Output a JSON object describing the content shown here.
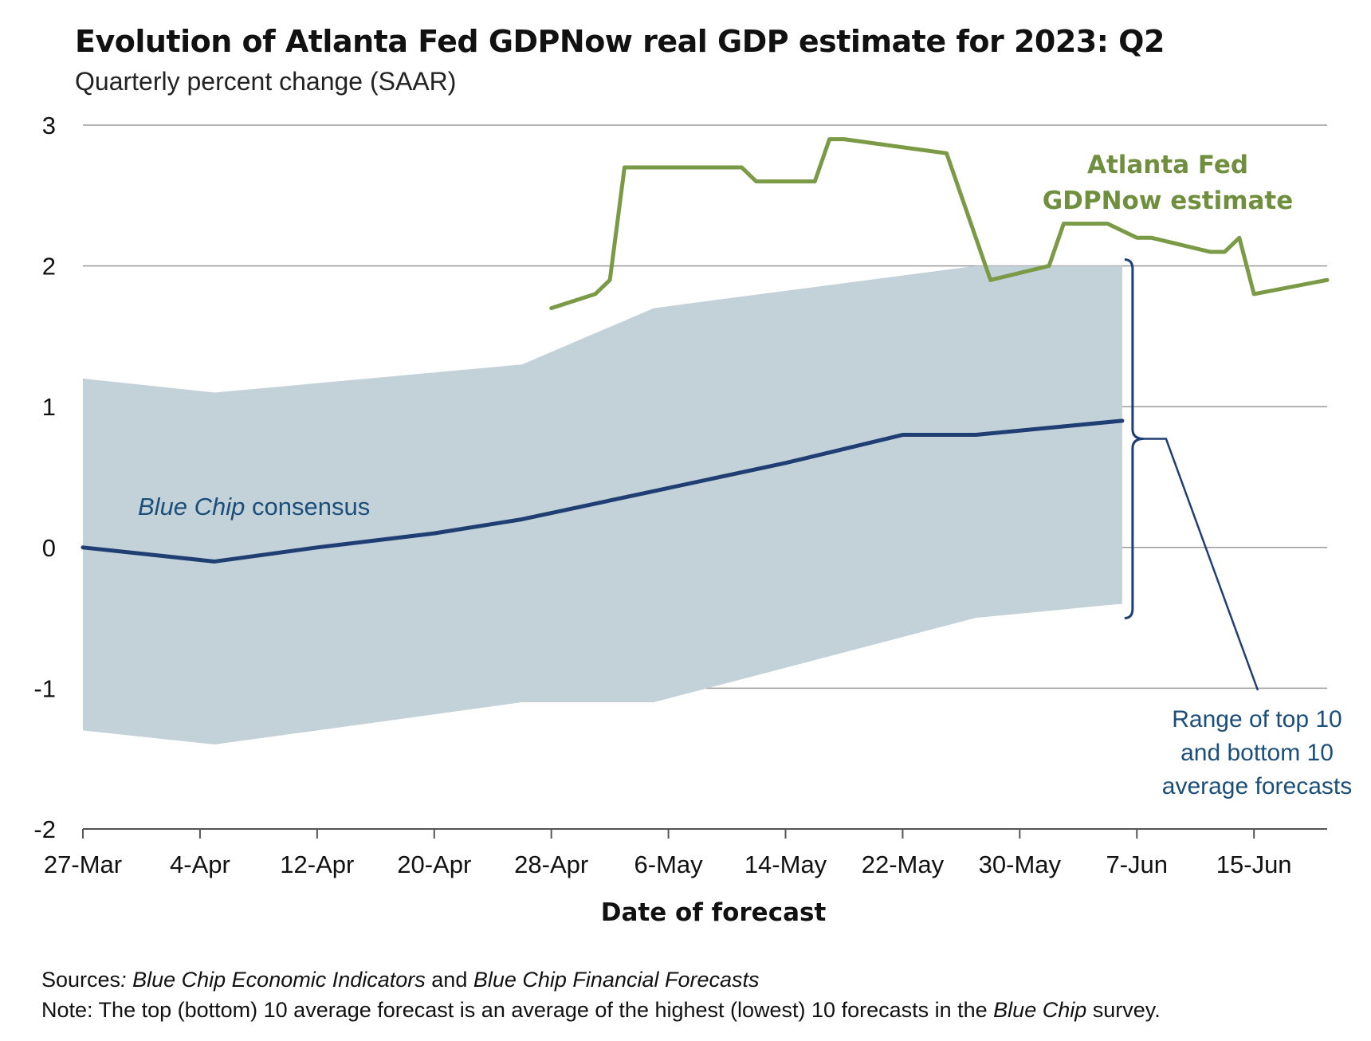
{
  "header": {
    "title": "Evolution of Atlanta Fed GDPNow real GDP estimate for 2023: Q2",
    "subtitle": "Quarterly percent change (SAAR)"
  },
  "footer": {
    "sources_label": "Sources",
    "sources_colon": ":",
    "sources_title_1": "Blue Chip Economic Indicators",
    "sources_and": " and ",
    "sources_title_2": "Blue Chip Financial Forecasts",
    "note_label": "Note:",
    "note_text_1": " The top (bottom) 10 average forecast is an average of the highest (lowest) 10 forecasts in the ",
    "note_italic": "Blue Chip",
    "note_text_2": " survey."
  },
  "colors": {
    "gdpnow": "#7a9a46",
    "consensus": "#1f3f73",
    "range_fill": "#c3d1d9",
    "grid": "#9a9a9a",
    "annotation_blue": "#1b4f7a"
  },
  "chart_data": {
    "type": "line",
    "xlabel": "Date of forecast",
    "ylabel": "",
    "ylim": [
      -2,
      3
    ],
    "yticks": [
      3,
      2,
      1,
      0,
      -1,
      -2
    ],
    "ytick_labels": [
      "3",
      "2",
      "1",
      "0",
      "-1",
      "-2"
    ],
    "xlim": [
      "2023-03-27",
      "2023-06-20"
    ],
    "xticks": [
      "2023-03-27",
      "2023-04-04",
      "2023-04-12",
      "2023-04-20",
      "2023-04-28",
      "2023-05-06",
      "2023-05-14",
      "2023-05-22",
      "2023-05-30",
      "2023-06-07",
      "2023-06-15"
    ],
    "xtick_labels": [
      "27-Mar",
      "4-Apr",
      "12-Apr",
      "20-Apr",
      "28-Apr",
      "6-May",
      "14-May",
      "22-May",
      "30-May",
      "7-Jun",
      "15-Jun"
    ],
    "grid": "horizontal",
    "series": [
      {
        "name": "Atlanta Fed GDPNow estimate",
        "points": [
          [
            "2023-04-28",
            1.7
          ],
          [
            "2023-05-01",
            1.8
          ],
          [
            "2023-05-02",
            1.9
          ],
          [
            "2023-05-03",
            2.7
          ],
          [
            "2023-05-11",
            2.7
          ],
          [
            "2023-05-12",
            2.6
          ],
          [
            "2023-05-16",
            2.6
          ],
          [
            "2023-05-17",
            2.9
          ],
          [
            "2023-05-18",
            2.9
          ],
          [
            "2023-05-25",
            2.8
          ],
          [
            "2023-05-28",
            1.9
          ],
          [
            "2023-06-01",
            2.0
          ],
          [
            "2023-06-02",
            2.3
          ],
          [
            "2023-06-05",
            2.3
          ],
          [
            "2023-06-07",
            2.2
          ],
          [
            "2023-06-08",
            2.2
          ],
          [
            "2023-06-12",
            2.1
          ],
          [
            "2023-06-13",
            2.1
          ],
          [
            "2023-06-14",
            2.2
          ],
          [
            "2023-06-15",
            1.8
          ],
          [
            "2023-06-20",
            1.9
          ]
        ]
      },
      {
        "name": "Blue Chip consensus",
        "points": [
          [
            "2023-03-27",
            0.0
          ],
          [
            "2023-04-05",
            -0.1
          ],
          [
            "2023-04-12",
            0.0
          ],
          [
            "2023-04-20",
            0.1
          ],
          [
            "2023-04-26",
            0.2
          ],
          [
            "2023-05-05",
            0.4
          ],
          [
            "2023-05-14",
            0.6
          ],
          [
            "2023-05-22",
            0.8
          ],
          [
            "2023-05-27",
            0.8
          ],
          [
            "2023-06-06",
            0.9
          ]
        ]
      }
    ],
    "range_band": {
      "name": "Range of top 10 and bottom 10 average forecasts",
      "dates": [
        "2023-03-27",
        "2023-04-05",
        "2023-04-26",
        "2023-05-05",
        "2023-05-27",
        "2023-06-06"
      ],
      "upper": [
        1.2,
        1.1,
        1.3,
        1.7,
        2.0,
        2.0
      ],
      "lower": [
        -1.3,
        -1.4,
        -1.1,
        -1.1,
        -0.5,
        -0.4
      ]
    },
    "annotations": {
      "gdpnow_line1": "Atlanta Fed",
      "gdpnow_line2": "GDPNow estimate",
      "consensus_italic": "Blue Chip",
      "consensus_rest": " consensus",
      "range_line1": "Range of top 10",
      "range_line2": "and bottom 10",
      "range_line3": "average forecasts"
    }
  }
}
